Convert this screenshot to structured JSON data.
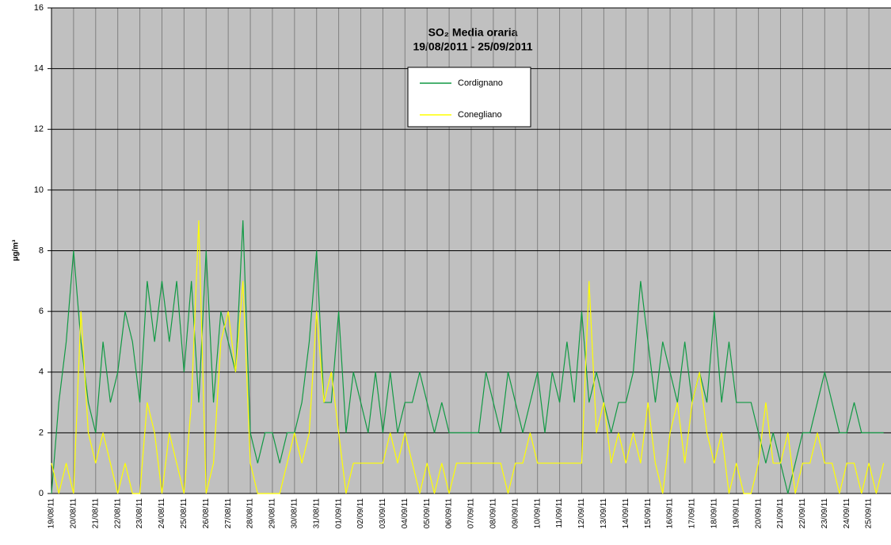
{
  "chart_data": {
    "type": "line",
    "title": "SO₂ Media oraria",
    "subtitle": "19/08/2011 - 25/09/2011",
    "y_label": "µg/m³",
    "categories": [
      "19/08/11",
      null,
      null,
      "20/08/11",
      null,
      null,
      "21/08/11",
      null,
      null,
      "22/08/11",
      null,
      null,
      "23/08/11",
      null,
      null,
      "24/08/11",
      null,
      null,
      "25/08/11",
      null,
      null,
      "26/08/11",
      null,
      null,
      "27/08/11",
      null,
      null,
      "28/08/11",
      null,
      null,
      "29/08/11",
      null,
      null,
      "30/08/11",
      null,
      null,
      "31/08/11",
      null,
      null,
      "01/09/11",
      null,
      null,
      "02/09/11",
      null,
      null,
      "03/09/11",
      null,
      null,
      "04/09/11",
      null,
      null,
      "05/09/11",
      null,
      null,
      "06/09/11",
      null,
      null,
      "07/09/11",
      null,
      null,
      "08/09/11",
      null,
      null,
      "09/09/11",
      null,
      null,
      "10/09/11",
      null,
      null,
      "11/09/11",
      null,
      null,
      "12/09/11",
      null,
      null,
      "13/09/11",
      null,
      null,
      "14/09/11",
      null,
      null,
      "15/09/11",
      null,
      null,
      "16/09/11",
      null,
      null,
      "17/09/11",
      null,
      null,
      "18/09/11",
      null,
      null,
      "19/09/11",
      null,
      null,
      "20/09/11",
      null,
      null,
      "21/09/11",
      null,
      null,
      "22/09/11",
      null,
      null,
      "23/09/11",
      null,
      null,
      "24/09/11",
      null,
      null,
      "25/09/11",
      null,
      null
    ],
    "series": [
      {
        "name": "Cordignano",
        "color": "#119944",
        "values": [
          0,
          3,
          5,
          8,
          5,
          3,
          2,
          5,
          3,
          4,
          6,
          5,
          3,
          7,
          5,
          7,
          5,
          7,
          4,
          7,
          3,
          8,
          3,
          6,
          5,
          4,
          9,
          2,
          1,
          2,
          2,
          1,
          2,
          2,
          3,
          5,
          8,
          3,
          3,
          6,
          2,
          4,
          3,
          2,
          4,
          2,
          4,
          2,
          3,
          3,
          4,
          3,
          2,
          3,
          2,
          2,
          2,
          2,
          2,
          4,
          3,
          2,
          4,
          3,
          2,
          3,
          4,
          2,
          4,
          3,
          5,
          3,
          6,
          3,
          4,
          3,
          2,
          3,
          3,
          4,
          7,
          5,
          3,
          5,
          4,
          3,
          5,
          3,
          4,
          3,
          6,
          3,
          5,
          3,
          3,
          3,
          2,
          1,
          2,
          1,
          0,
          1,
          2,
          2,
          3,
          4,
          3,
          2,
          2,
          3,
          2,
          2,
          2,
          2
        ]
      },
      {
        "name": "Conegliano",
        "color": "#ffff00",
        "values": [
          1,
          0,
          1,
          0,
          6,
          2,
          1,
          2,
          1,
          0,
          1,
          0,
          0,
          3,
          2,
          0,
          2,
          1,
          0,
          3,
          9,
          0,
          1,
          5,
          6,
          4,
          7,
          1,
          0,
          0,
          0,
          0,
          1,
          2,
          1,
          2,
          6,
          3,
          4,
          2,
          0,
          1,
          1,
          1,
          1,
          1,
          2,
          1,
          2,
          1,
          0,
          1,
          0,
          1,
          0,
          1,
          1,
          1,
          1,
          1,
          1,
          1,
          0,
          1,
          1,
          2,
          1,
          1,
          1,
          1,
          1,
          1,
          1,
          7,
          2,
          3,
          1,
          2,
          1,
          2,
          1,
          3,
          1,
          0,
          2,
          3,
          1,
          3,
          4,
          2,
          1,
          2,
          0,
          1,
          0,
          0,
          1,
          3,
          1,
          1,
          2,
          0,
          1,
          1,
          2,
          1,
          1,
          0,
          1,
          1,
          0,
          1,
          0,
          1
        ]
      }
    ],
    "ylim": [
      0,
      16
    ],
    "yticks": [
      0,
      2,
      4,
      6,
      8,
      10,
      12,
      14,
      16
    ],
    "grid": true
  }
}
